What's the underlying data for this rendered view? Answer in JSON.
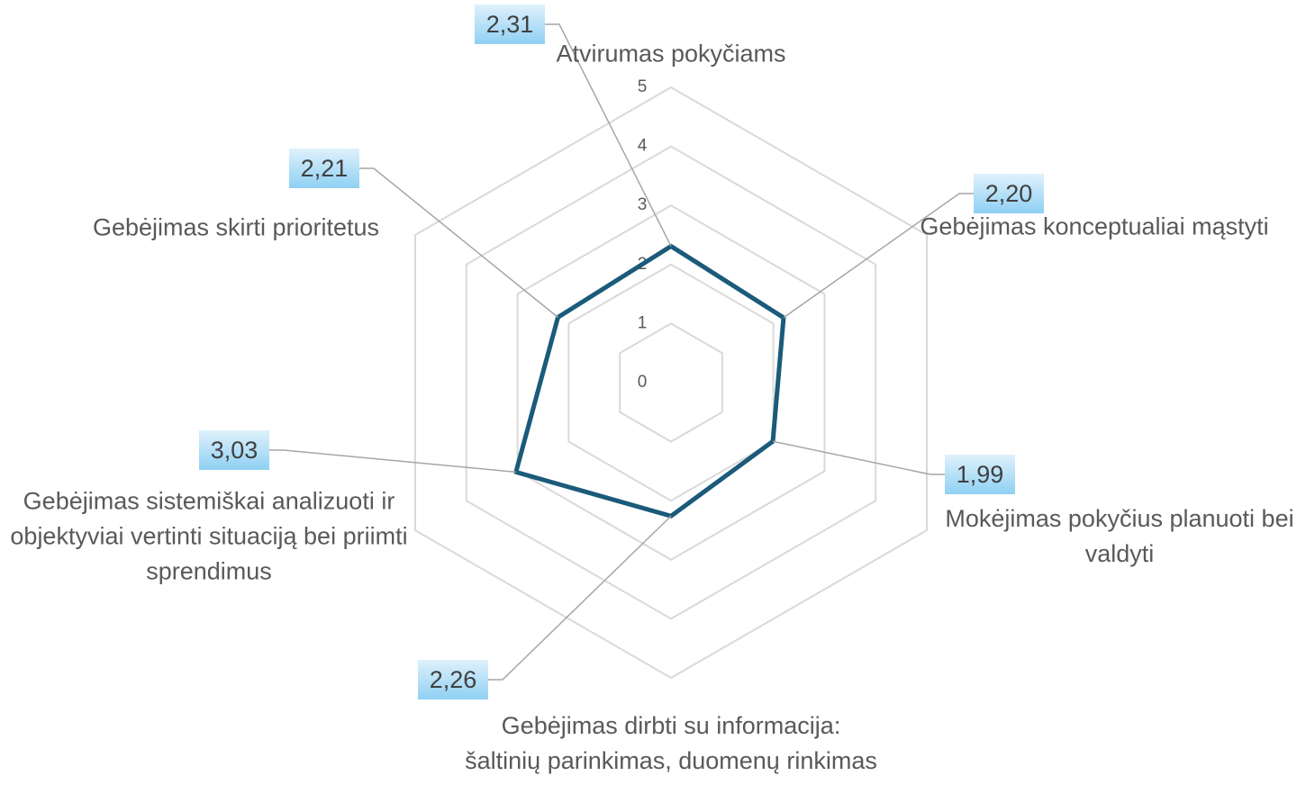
{
  "chart_data": {
    "type": "radar",
    "categories": [
      "Atvirumas pokyčiams",
      "Gebėjimas konceptualiai mąstyti",
      "Mokėjimas pokyčius planuoti bei valdyti",
      "Gebėjimas dirbti su informacija: šaltinių parinkimas, duomenų rinkimas",
      "Gebėjimas sistemiškai analizuoti ir objektyviai vertinti situaciją bei priimti sprendimus",
      "Gebėjimas skirti prioritetus"
    ],
    "values": [
      2.31,
      2.2,
      1.99,
      2.26,
      3.03,
      2.21
    ],
    "value_labels": [
      "2,31",
      "2,20",
      "1,99",
      "2,26",
      "3,03",
      "2,21"
    ],
    "color": "#1b5a7a",
    "ylim": [
      0,
      5
    ],
    "yticks": [
      0,
      1,
      2,
      3,
      4,
      5
    ],
    "grid": true
  }
}
